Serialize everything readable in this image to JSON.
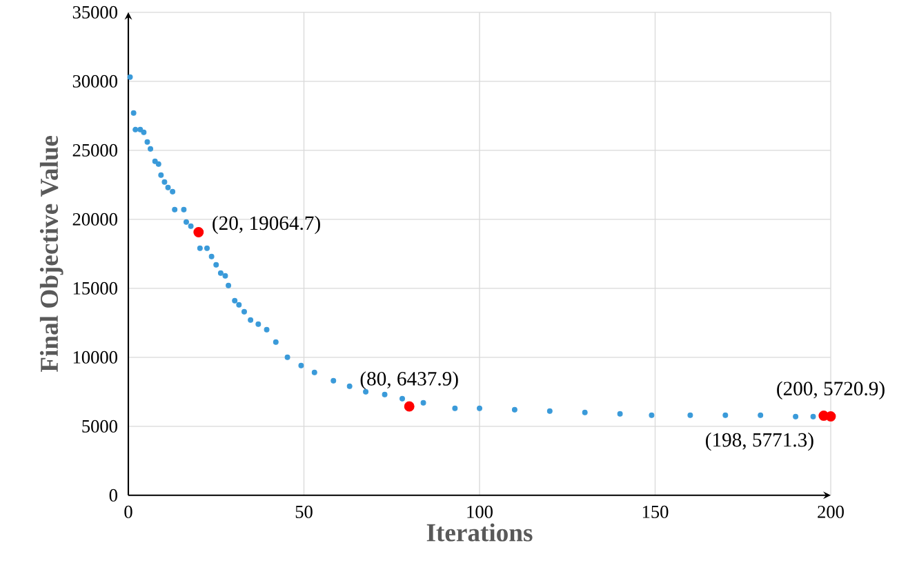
{
  "chart_data": {
    "type": "scatter",
    "xlabel": "Iterations",
    "ylabel": "Final Objective Value",
    "xlim": [
      0,
      200
    ],
    "xticks": [
      0,
      50,
      100,
      150,
      200
    ],
    "ylim": [
      0,
      35000
    ],
    "yticks": [
      0,
      5000,
      10000,
      15000,
      20000,
      25000,
      30000,
      35000
    ],
    "grid": true,
    "series": [
      {
        "color": "#3a9ad9",
        "x": [
          0.5,
          1.5,
          2,
          3.4,
          4.4,
          5.4,
          6.3,
          7.6,
          8.6,
          9.3,
          10.3,
          11.3,
          12.6,
          13.2,
          15.8,
          16.5,
          17.8,
          20.4,
          22.4,
          23.7,
          25,
          26.3,
          27.6,
          28.5,
          30.3,
          31.5,
          33,
          34.8,
          37,
          39.4,
          42,
          45.3,
          49.2,
          53,
          58.4,
          63,
          67.6,
          73,
          78,
          84,
          93,
          100,
          110,
          120,
          130,
          140,
          149,
          160,
          170,
          180,
          190,
          195
        ],
        "values": [
          30300,
          27700,
          26500,
          26500,
          26300,
          25600,
          25100,
          24200,
          24000,
          23200,
          22700,
          22300,
          22000,
          20700,
          20700,
          19800,
          19500,
          17900,
          17900,
          17300,
          16700,
          16100,
          15900,
          15200,
          14100,
          13800,
          13300,
          12700,
          12400,
          12000,
          11100,
          10000,
          9400,
          8900,
          8300,
          7900,
          7500,
          7300,
          7000,
          6700,
          6300,
          6300,
          6200,
          6100,
          6000,
          5900,
          5800,
          5800,
          5800,
          5800,
          5700,
          5700
        ]
      },
      {
        "color": "#ff0000",
        "x": [
          20,
          80,
          198,
          200
        ],
        "values": [
          19064.7,
          6437.9,
          5771.3,
          5720.9
        ],
        "value_labels": [
          "(20, 19064.7)",
          "(80, 6437.9)",
          "(198, 5771.3)",
          "(200, 5720.9)"
        ]
      }
    ]
  }
}
